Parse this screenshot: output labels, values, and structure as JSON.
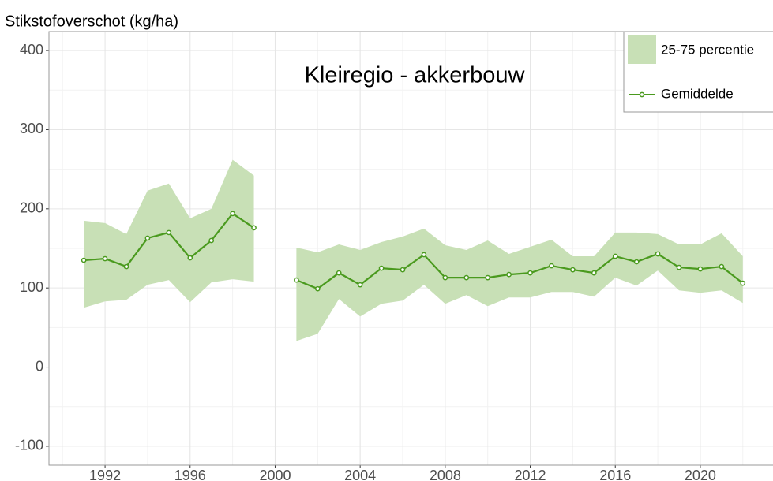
{
  "chart_data": {
    "type": "line",
    "title": "Kleiregio - akkerbouw",
    "y_label": "Stikstofoverschot (kg/ha)",
    "x": [
      1991,
      1992,
      1993,
      1994,
      1995,
      1996,
      1997,
      1998,
      1999,
      2000,
      2001,
      2002,
      2003,
      2004,
      2005,
      2006,
      2007,
      2008,
      2009,
      2010,
      2011,
      2012,
      2013,
      2014,
      2015,
      2016,
      2017,
      2018,
      2019,
      2020,
      2021,
      2022
    ],
    "band": {
      "name": "25-75 percentie",
      "color": "#c8e0b6",
      "upper": [
        185,
        182,
        168,
        223,
        232,
        188,
        200,
        262,
        242,
        null,
        151,
        145,
        155,
        148,
        158,
        165,
        175,
        154,
        148,
        160,
        143,
        152,
        161,
        140,
        140,
        170,
        170,
        168,
        155,
        155,
        169,
        140
      ],
      "lower": [
        75,
        83,
        85,
        104,
        110,
        82,
        107,
        111,
        108,
        null,
        33,
        42,
        86,
        64,
        80,
        84,
        104,
        80,
        91,
        77,
        88,
        88,
        95,
        95,
        89,
        113,
        103,
        122,
        97,
        94,
        97,
        81
      ]
    },
    "series": [
      {
        "name": "Gemiddelde",
        "color": "#4a9a1e",
        "values": [
          135,
          137,
          127,
          163,
          170,
          138,
          160,
          194,
          176,
          null,
          110,
          99,
          119,
          104,
          125,
          123,
          142,
          113,
          113,
          113,
          117,
          119,
          128,
          123,
          119,
          140,
          133,
          143,
          126,
          124,
          127,
          106
        ]
      }
    ],
    "xlim": [
      1989.36,
      2023.42
    ],
    "ylim": [
      -124,
      424
    ],
    "xticks": [
      1992,
      1996,
      2000,
      2004,
      2008,
      2012,
      2016,
      2020
    ],
    "yticks": [
      -100,
      0,
      100,
      200,
      300,
      400
    ],
    "grid": true,
    "legend": "top-right"
  }
}
